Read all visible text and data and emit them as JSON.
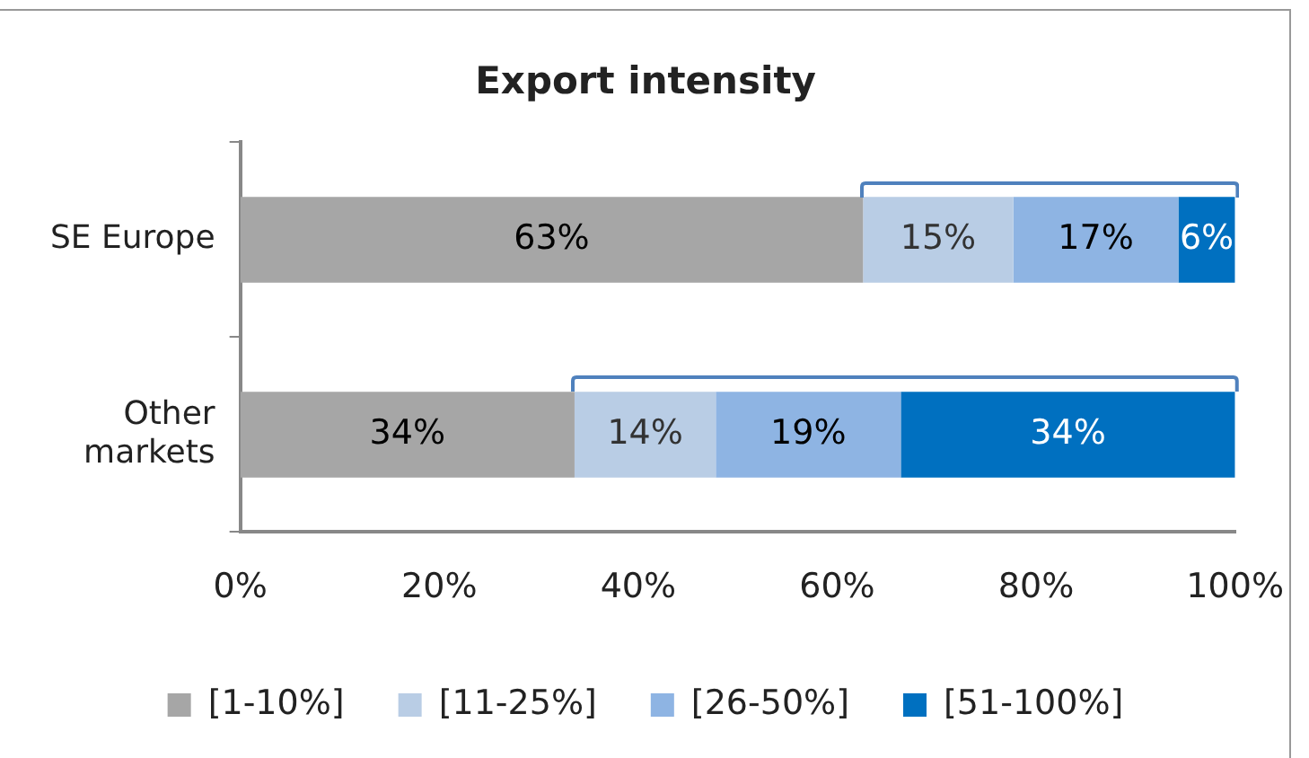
{
  "chart_data": {
    "type": "bar",
    "title": "Export intensity",
    "orientation": "horizontal",
    "stacked": true,
    "categories": [
      "SE Europe",
      "Other markets"
    ],
    "series": [
      {
        "name": "[1-10%]",
        "color": "#a6a6a6",
        "values": [
          62.6,
          33.6
        ],
        "value_labels": [
          "63%",
          "34%"
        ]
      },
      {
        "name": "[11-25%]",
        "color": "#b9cde5",
        "values": [
          15.1,
          14.2
        ],
        "value_labels": [
          "15%",
          "14%"
        ]
      },
      {
        "name": "[26-50%]",
        "color": "#8eb4e3",
        "values": [
          16.6,
          18.6
        ],
        "value_labels": [
          "17%",
          "19%"
        ]
      },
      {
        "name": "[51-100%]",
        "color": "#0070c0",
        "values": [
          5.7,
          33.6
        ],
        "value_labels": [
          "6%",
          "34%"
        ]
      }
    ],
    "xlim": [
      0,
      100
    ],
    "xticks": [
      {
        "value": 0,
        "label": "0%"
      },
      {
        "value": 20,
        "label": "20%"
      },
      {
        "value": 40,
        "label": "40%"
      },
      {
        "value": 60,
        "label": "60%"
      },
      {
        "value": 80,
        "label": "80%"
      },
      {
        "value": 100,
        "label": "100%"
      }
    ],
    "grid": false,
    "legend": "bottom"
  }
}
